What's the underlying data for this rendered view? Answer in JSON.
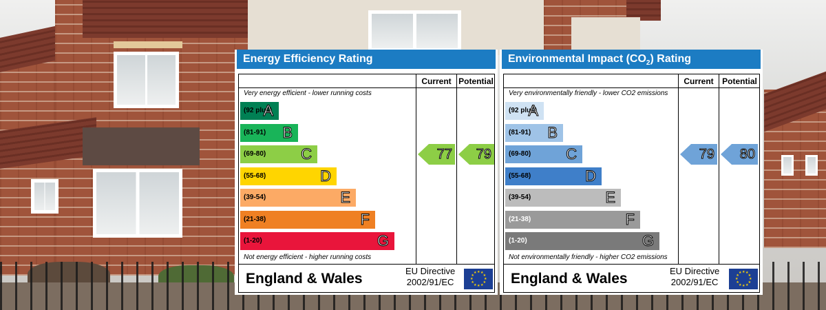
{
  "chart_data": [
    {
      "type": "bar",
      "title": "Energy Efficiency Rating",
      "columns": [
        "Current",
        "Potential"
      ],
      "note_top": "Very energy efficient - lower running costs",
      "note_bottom": "Not energy efficient - higher running costs",
      "bands": [
        {
          "range": "(92 plus)",
          "letter": "A",
          "color": "#008054",
          "text_color": "#000000"
        },
        {
          "range": "(81-91)",
          "letter": "B",
          "color": "#19b459",
          "text_color": "#000000"
        },
        {
          "range": "(69-80)",
          "letter": "C",
          "color": "#8dce46",
          "text_color": "#000000"
        },
        {
          "range": "(55-68)",
          "letter": "D",
          "color": "#ffd500",
          "text_color": "#000000"
        },
        {
          "range": "(39-54)",
          "letter": "E",
          "color": "#fcaa65",
          "text_color": "#000000"
        },
        {
          "range": "(21-38)",
          "letter": "F",
          "color": "#ef8023",
          "text_color": "#000000"
        },
        {
          "range": "(1-20)",
          "letter": "G",
          "color": "#e9153b",
          "text_color": "#000000"
        }
      ],
      "current": {
        "value": 77,
        "band": "C",
        "color": "#8dce46"
      },
      "potential": {
        "value": 79,
        "band": "C",
        "color": "#8dce46"
      },
      "footer": "England & Wales",
      "directive_line1": "EU Directive",
      "directive_line2": "2002/91/EC"
    },
    {
      "type": "bar",
      "title_prefix": "Environmental Impact (CO",
      "title_sub": "2",
      "title_suffix": ") Rating",
      "columns": [
        "Current",
        "Potential"
      ],
      "note_top": "Very environmentally friendly - lower CO2 emissions",
      "note_bottom": "Not environmentally friendly - higher CO2 emissions",
      "bands": [
        {
          "range": "(92 plus)",
          "letter": "A",
          "color": "#cfe2f3",
          "text_color": "#000000"
        },
        {
          "range": "(81-91)",
          "letter": "B",
          "color": "#9fc3e7",
          "text_color": "#000000"
        },
        {
          "range": "(69-80)",
          "letter": "C",
          "color": "#6fa3d8",
          "text_color": "#000000"
        },
        {
          "range": "(55-68)",
          "letter": "D",
          "color": "#3f7fc9",
          "text_color": "#000000"
        },
        {
          "range": "(39-54)",
          "letter": "E",
          "color": "#bcbcbc",
          "text_color": "#000000"
        },
        {
          "range": "(21-38)",
          "letter": "F",
          "color": "#9a9a9a",
          "text_color": "#ffffff"
        },
        {
          "range": "(1-20)",
          "letter": "G",
          "color": "#7a7a7a",
          "text_color": "#ffffff"
        }
      ],
      "current": {
        "value": 79,
        "band": "C",
        "color": "#6fa3d8"
      },
      "potential": {
        "value": 80,
        "band": "C",
        "color": "#6fa3d8"
      },
      "footer": "England & Wales",
      "directive_line1": "EU Directive",
      "directive_line2": "2002/91/EC"
    }
  ]
}
